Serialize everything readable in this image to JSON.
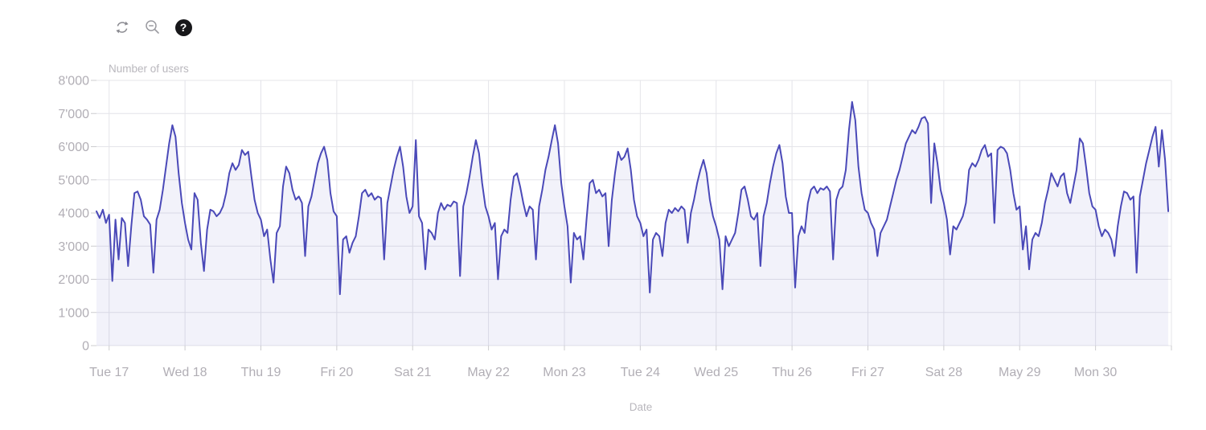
{
  "toolbar": {
    "restore_tooltip": "restore",
    "zoom_out_tooltip": "zoom out",
    "help_glyph": "?"
  },
  "chart": {
    "y_axis_name": "Number of users",
    "x_axis_name": "Date",
    "colors": {
      "line": "#4a49b8",
      "area_fill": "rgba(74,73,184,0.07)",
      "grid": "#e4e4e9",
      "axis_tick": "#cccccf",
      "tick_label": "#b1aeb5",
      "axis_name": "#b9b7bd",
      "help_bg": "#17171a",
      "icon_gray": "#8b8b91"
    }
  },
  "chart_data": {
    "type": "line",
    "title": "Number of users",
    "xlabel": "Date",
    "ylabel": "Number of users",
    "ylim": [
      0,
      8000
    ],
    "y_tick_step": 1000,
    "y_tick_labels": [
      "0",
      "1'000",
      "2'000",
      "3'000",
      "4'000",
      "5'000",
      "6'000",
      "7'000",
      "8'000"
    ],
    "x_tick_labels": [
      "Tue 17",
      "Wed 18",
      "Thu 19",
      "Fri 20",
      "Sat 21",
      "May 22",
      "Mon 23",
      "Tue 24",
      "Wed 25",
      "Thu 26",
      "Fri 27",
      "Sat 28",
      "May 29",
      "Mon 30",
      ""
    ],
    "x_tick_hours": [
      4,
      28,
      52,
      76,
      100,
      124,
      148,
      172,
      196,
      220,
      244,
      268,
      292,
      316,
      340
    ],
    "hours_total": 340,
    "grid": true,
    "legend": false,
    "series": [
      {
        "name": "users",
        "unit": "hourly",
        "values": [
          4050,
          3850,
          4100,
          3700,
          3950,
          1950,
          3800,
          2600,
          3850,
          3700,
          2400,
          3600,
          4600,
          4650,
          4400,
          3900,
          3800,
          3650,
          2200,
          3800,
          4100,
          4700,
          5400,
          6100,
          6650,
          6300,
          5200,
          4300,
          3700,
          3200,
          2900,
          4600,
          4400,
          3100,
          2250,
          3500,
          4100,
          4050,
          3900,
          4000,
          4200,
          4600,
          5200,
          5500,
          5300,
          5450,
          5900,
          5750,
          5850,
          5100,
          4400,
          4000,
          3800,
          3300,
          3500,
          2600,
          1900,
          3400,
          3600,
          4800,
          5400,
          5200,
          4700,
          4400,
          4500,
          4300,
          2700,
          4200,
          4500,
          5000,
          5500,
          5800,
          6000,
          5600,
          4600,
          4050,
          3900,
          1550,
          3200,
          3300,
          2800,
          3100,
          3300,
          3900,
          4600,
          4700,
          4500,
          4600,
          4400,
          4500,
          4450,
          2600,
          4300,
          4800,
          5300,
          5700,
          6000,
          5400,
          4500,
          4000,
          4200,
          6200,
          3900,
          3700,
          2300,
          3500,
          3400,
          3200,
          4000,
          4300,
          4100,
          4250,
          4200,
          4350,
          4300,
          2100,
          4200,
          4600,
          5100,
          5700,
          6200,
          5800,
          4900,
          4200,
          3900,
          3500,
          3700,
          2000,
          3300,
          3500,
          3400,
          4400,
          5100,
          5200,
          4800,
          4300,
          3900,
          4200,
          4100,
          2600,
          4200,
          4700,
          5300,
          5700,
          6200,
          6650,
          6100,
          4900,
          4200,
          3600,
          1900,
          3400,
          3200,
          3300,
          2600,
          3800,
          4900,
          5000,
          4600,
          4700,
          4500,
          4600,
          3000,
          4400,
          5200,
          5850,
          5600,
          5700,
          5950,
          5300,
          4400,
          3900,
          3700,
          3300,
          3500,
          1600,
          3200,
          3400,
          3300,
          2700,
          3700,
          4100,
          4000,
          4150,
          4050,
          4200,
          4100,
          3100,
          4000,
          4400,
          4900,
          5300,
          5600,
          5200,
          4400,
          3900,
          3600,
          3200,
          1700,
          3300,
          3000,
          3200,
          3400,
          4000,
          4700,
          4800,
          4400,
          3900,
          3800,
          4000,
          2400,
          3900,
          4300,
          4900,
          5400,
          5800,
          6050,
          5500,
          4500,
          4000,
          4000,
          1750,
          3300,
          3600,
          3400,
          4300,
          4700,
          4800,
          4600,
          4750,
          4700,
          4800,
          4650,
          2600,
          4400,
          4700,
          4800,
          5300,
          6500,
          7350,
          6800,
          5400,
          4600,
          4100,
          4000,
          3700,
          3500,
          2700,
          3400,
          3600,
          3800,
          4200,
          4600,
          5000,
          5300,
          5700,
          6100,
          6300,
          6500,
          6400,
          6600,
          6850,
          6900,
          6700,
          4300,
          6100,
          5500,
          4700,
          4300,
          3800,
          2750,
          3600,
          3500,
          3700,
          3900,
          4300,
          5300,
          5500,
          5400,
          5600,
          5900,
          6050,
          5700,
          5800,
          3700,
          5900,
          6000,
          5950,
          5800,
          5300,
          4600,
          4100,
          4200,
          2900,
          3600,
          2300,
          3200,
          3400,
          3300,
          3700,
          4300,
          4700,
          5200,
          5000,
          4800,
          5100,
          5200,
          4600,
          4300,
          4800,
          5300,
          6250,
          6100,
          5400,
          4600,
          4200,
          4100,
          3600,
          3300,
          3500,
          3400,
          3200,
          2700,
          3600,
          4200,
          4650,
          4600,
          4400,
          4500,
          2200,
          4500,
          5000,
          5500,
          5900,
          6300,
          6600,
          5400,
          6500,
          5600,
          4050
        ]
      }
    ]
  }
}
